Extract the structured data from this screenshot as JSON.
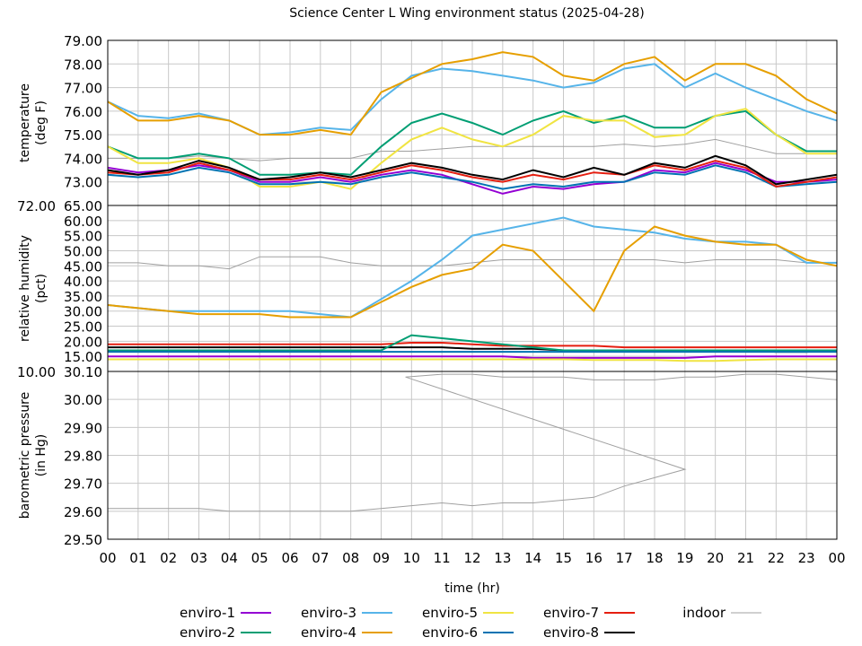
{
  "chart_data": {
    "type": "line",
    "title": "Science Center L Wing environment status (2025-04-28)",
    "xlabel": "time (hr)",
    "x_ticks": [
      "00",
      "01",
      "02",
      "03",
      "04",
      "05",
      "06",
      "07",
      "08",
      "09",
      "10",
      "11",
      "12",
      "13",
      "14",
      "15",
      "16",
      "17",
      "18",
      "19",
      "20",
      "21",
      "22",
      "23",
      "00"
    ],
    "xlim": [
      0,
      24
    ],
    "grid": true,
    "legend_placement": "bottom",
    "colors": {
      "enviro-1": "#9400d3",
      "enviro-2": "#009e73",
      "enviro-3": "#56b4e9",
      "enviro-4": "#e69f00",
      "enviro-5": "#f0e442",
      "enviro-6": "#0072b2",
      "enviro-7": "#e51e10",
      "enviro-8": "#000000",
      "indoor": "#a0a0a0"
    },
    "legend": [
      "enviro-1",
      "enviro-2",
      "enviro-3",
      "enviro-4",
      "enviro-5",
      "enviro-6",
      "enviro-7",
      "enviro-8",
      "indoor"
    ],
    "panels": [
      {
        "ylabel": [
          "temperature",
          "(deg F)"
        ],
        "ylim": [
          72,
          79
        ],
        "y_ticks": [
          "79.00",
          "78.00",
          "77.00",
          "76.00",
          "75.00",
          "74.00",
          "73.00",
          "72.00"
        ],
        "y_tick_values": [
          79,
          78,
          77,
          76,
          75,
          74,
          73,
          72
        ],
        "series": [
          {
            "name": "indoor",
            "values": [
              74.0,
              74.0,
              74.0,
              74.1,
              74.0,
              73.9,
              74.0,
              74.0,
              74.0,
              74.3,
              74.3,
              74.4,
              74.5,
              74.5,
              74.5,
              74.5,
              74.5,
              74.6,
              74.5,
              74.6,
              74.8,
              74.5,
              74.2,
              74.2,
              74.2
            ]
          },
          {
            "name": "enviro-3",
            "values": [
              76.4,
              75.8,
              75.7,
              75.9,
              75.6,
              75.0,
              75.1,
              75.3,
              75.2,
              76.5,
              77.5,
              77.8,
              77.7,
              77.5,
              77.3,
              77.0,
              77.2,
              77.8,
              78.0,
              77.0,
              77.6,
              77.0,
              76.5,
              76.0,
              75.6
            ]
          },
          {
            "name": "enviro-4",
            "values": [
              76.4,
              75.6,
              75.6,
              75.8,
              75.6,
              75.0,
              75.0,
              75.2,
              75.0,
              76.8,
              77.4,
              78.0,
              78.2,
              78.5,
              78.3,
              77.5,
              77.3,
              78.0,
              78.3,
              77.3,
              78.0,
              78.0,
              77.5,
              76.5,
              75.9
            ]
          },
          {
            "name": "enviro-2",
            "values": [
              74.5,
              74.0,
              74.0,
              74.2,
              74.0,
              73.3,
              73.3,
              73.4,
              73.3,
              74.5,
              75.5,
              75.9,
              75.5,
              75.0,
              75.6,
              76.0,
              75.5,
              75.8,
              75.3,
              75.3,
              75.8,
              76.0,
              75.0,
              74.3,
              74.3
            ]
          },
          {
            "name": "enviro-5",
            "values": [
              74.5,
              73.8,
              73.8,
              74.0,
              73.6,
              72.8,
              72.8,
              73.0,
              72.7,
              73.8,
              74.8,
              75.3,
              74.8,
              74.5,
              75.0,
              75.8,
              75.6,
              75.6,
              74.9,
              75.0,
              75.8,
              76.1,
              75.0,
              74.2,
              74.2
            ]
          },
          {
            "name": "enviro-1",
            "values": [
              73.6,
              73.4,
              73.5,
              73.7,
              73.5,
              73.0,
              73.0,
              73.2,
              73.0,
              73.3,
              73.5,
              73.3,
              72.9,
              72.5,
              72.8,
              72.7,
              72.9,
              73.0,
              73.5,
              73.4,
              73.8,
              73.5,
              73.0,
              73.0,
              73.1
            ]
          },
          {
            "name": "enviro-6",
            "values": [
              73.3,
              73.2,
              73.3,
              73.6,
              73.4,
              72.9,
              72.9,
              73.0,
              72.9,
              73.2,
              73.4,
              73.2,
              73.0,
              72.7,
              72.9,
              72.8,
              73.0,
              73.0,
              73.4,
              73.3,
              73.7,
              73.4,
              72.8,
              72.9,
              73.0
            ]
          },
          {
            "name": "enviro-7",
            "values": [
              73.4,
              73.3,
              73.4,
              73.8,
              73.5,
              73.1,
              73.1,
              73.3,
              73.1,
              73.4,
              73.7,
              73.5,
              73.2,
              73.0,
              73.3,
              73.1,
              73.4,
              73.3,
              73.7,
              73.5,
              73.9,
              73.6,
              72.8,
              73.0,
              73.2
            ]
          },
          {
            "name": "enviro-8",
            "values": [
              73.5,
              73.3,
              73.5,
              73.9,
              73.6,
              73.1,
              73.2,
              73.4,
              73.2,
              73.5,
              73.8,
              73.6,
              73.3,
              73.1,
              73.5,
              73.2,
              73.6,
              73.3,
              73.8,
              73.6,
              74.1,
              73.7,
              72.9,
              73.1,
              73.3
            ]
          }
        ]
      },
      {
        "ylabel": [
          "relative humidity",
          "(pct)"
        ],
        "ylim": [
          10,
          65
        ],
        "y_ticks": [
          "65.00",
          "60.00",
          "55.00",
          "50.00",
          "45.00",
          "40.00",
          "35.00",
          "30.00",
          "25.00",
          "20.00",
          "15.00",
          "10.00"
        ],
        "y_tick_values": [
          65,
          60,
          55,
          50,
          45,
          40,
          35,
          30,
          25,
          20,
          15,
          10
        ],
        "series": [
          {
            "name": "indoor",
            "values": [
              46,
              46,
              45,
              45,
              44,
              48,
              48,
              48,
              46,
              45,
              45,
              45,
              46,
              47,
              47,
              47,
              47,
              47,
              47,
              46,
              47,
              47,
              47,
              46,
              46
            ]
          },
          {
            "name": "enviro-3",
            "values": [
              32,
              31,
              30,
              30,
              30,
              30,
              30,
              29,
              28,
              34,
              40,
              47,
              55,
              57,
              59,
              61,
              58,
              57,
              56,
              54,
              53,
              53,
              52,
              46,
              46
            ]
          },
          {
            "name": "enviro-4",
            "values": [
              32,
              31,
              30,
              29,
              29,
              29,
              28,
              28,
              28,
              33,
              38,
              42,
              44,
              52,
              50,
              40,
              30,
              50,
              58,
              55,
              53,
              52,
              52,
              47,
              45
            ]
          },
          {
            "name": "enviro-7",
            "values": [
              19,
              19,
              19,
              19,
              19,
              19,
              19,
              19,
              19,
              19,
              19.5,
              19.5,
              19,
              18.5,
              18.5,
              18.5,
              18.5,
              18,
              18,
              18,
              18,
              18,
              18,
              18,
              18
            ]
          },
          {
            "name": "enviro-8",
            "values": [
              18,
              18,
              18,
              18,
              18,
              18,
              18,
              18,
              18,
              18,
              18,
              18,
              17.5,
              17.5,
              17.5,
              17,
              17,
              17,
              17,
              17,
              17,
              17,
              16.5,
              16.5,
              17
            ]
          },
          {
            "name": "enviro-2",
            "values": [
              17,
              17,
              17,
              17,
              17,
              17,
              17,
              17,
              17,
              17,
              22,
              21,
              20,
              19,
              18,
              17,
              17,
              17,
              17,
              17,
              17,
              17,
              17,
              17,
              17
            ]
          },
          {
            "name": "enviro-6",
            "values": [
              16.5,
              16.5,
              16.5,
              16.5,
              16.5,
              16.5,
              16.5,
              16.5,
              16.5,
              16.5,
              16.5,
              16.5,
              16.5,
              16.5,
              16.5,
              16.5,
              16.5,
              16.5,
              16.5,
              16.5,
              16.5,
              16.5,
              16.5,
              16.5,
              16.5
            ]
          },
          {
            "name": "enviro-1",
            "values": [
              15,
              15,
              15,
              15,
              15,
              15,
              15,
              15,
              15,
              15,
              15,
              15,
              15,
              15,
              14.5,
              14.5,
              14.5,
              14.5,
              14.5,
              14.5,
              15,
              15,
              15,
              15,
              15
            ]
          },
          {
            "name": "enviro-5",
            "values": [
              14,
              14,
              14,
              14,
              14,
              14,
              14,
              14,
              14,
              14,
              14,
              14,
              14,
              14,
              14,
              14,
              13.8,
              13.8,
              13.8,
              13.5,
              13.5,
              13.8,
              14,
              14,
              14
            ]
          }
        ]
      },
      {
        "ylabel": [
          "barometric pressure",
          "(in Hg)"
        ],
        "ylim": [
          29.5,
          30.1
        ],
        "y_ticks": [
          "30.10",
          "30.00",
          "29.90",
          "29.80",
          "29.70",
          "29.60",
          "29.50"
        ],
        "y_tick_values": [
          30.1,
          30.0,
          29.9,
          29.8,
          29.7,
          29.6,
          29.5
        ],
        "series": [
          {
            "name": "indoor",
            "points": [
              [
                0,
                29.61
              ],
              [
                1,
                29.61
              ],
              [
                2,
                29.61
              ],
              [
                3,
                29.61
              ],
              [
                4,
                29.6
              ],
              [
                5,
                29.6
              ],
              [
                6,
                29.6
              ],
              [
                7,
                29.6
              ],
              [
                8,
                29.6
              ],
              [
                9,
                29.61
              ],
              [
                10,
                29.62
              ],
              [
                11,
                29.63
              ],
              [
                12,
                29.62
              ],
              [
                13,
                29.63
              ],
              [
                14,
                29.63
              ],
              [
                15,
                29.64
              ],
              [
                16,
                29.65
              ],
              [
                17,
                29.69
              ],
              [
                18,
                29.72
              ],
              [
                19,
                29.75
              ],
              [
                9.8,
                30.08
              ],
              [
                11,
                30.09
              ],
              [
                12,
                30.09
              ],
              [
                13,
                30.08
              ],
              [
                14,
                30.08
              ],
              [
                15,
                30.08
              ],
              [
                16,
                30.07
              ],
              [
                17,
                30.07
              ],
              [
                18,
                30.07
              ],
              [
                19,
                30.08
              ],
              [
                20,
                30.08
              ],
              [
                21,
                30.09
              ],
              [
                22,
                30.09
              ],
              [
                23,
                30.08
              ],
              [
                24,
                30.07
              ]
            ]
          }
        ]
      }
    ]
  }
}
